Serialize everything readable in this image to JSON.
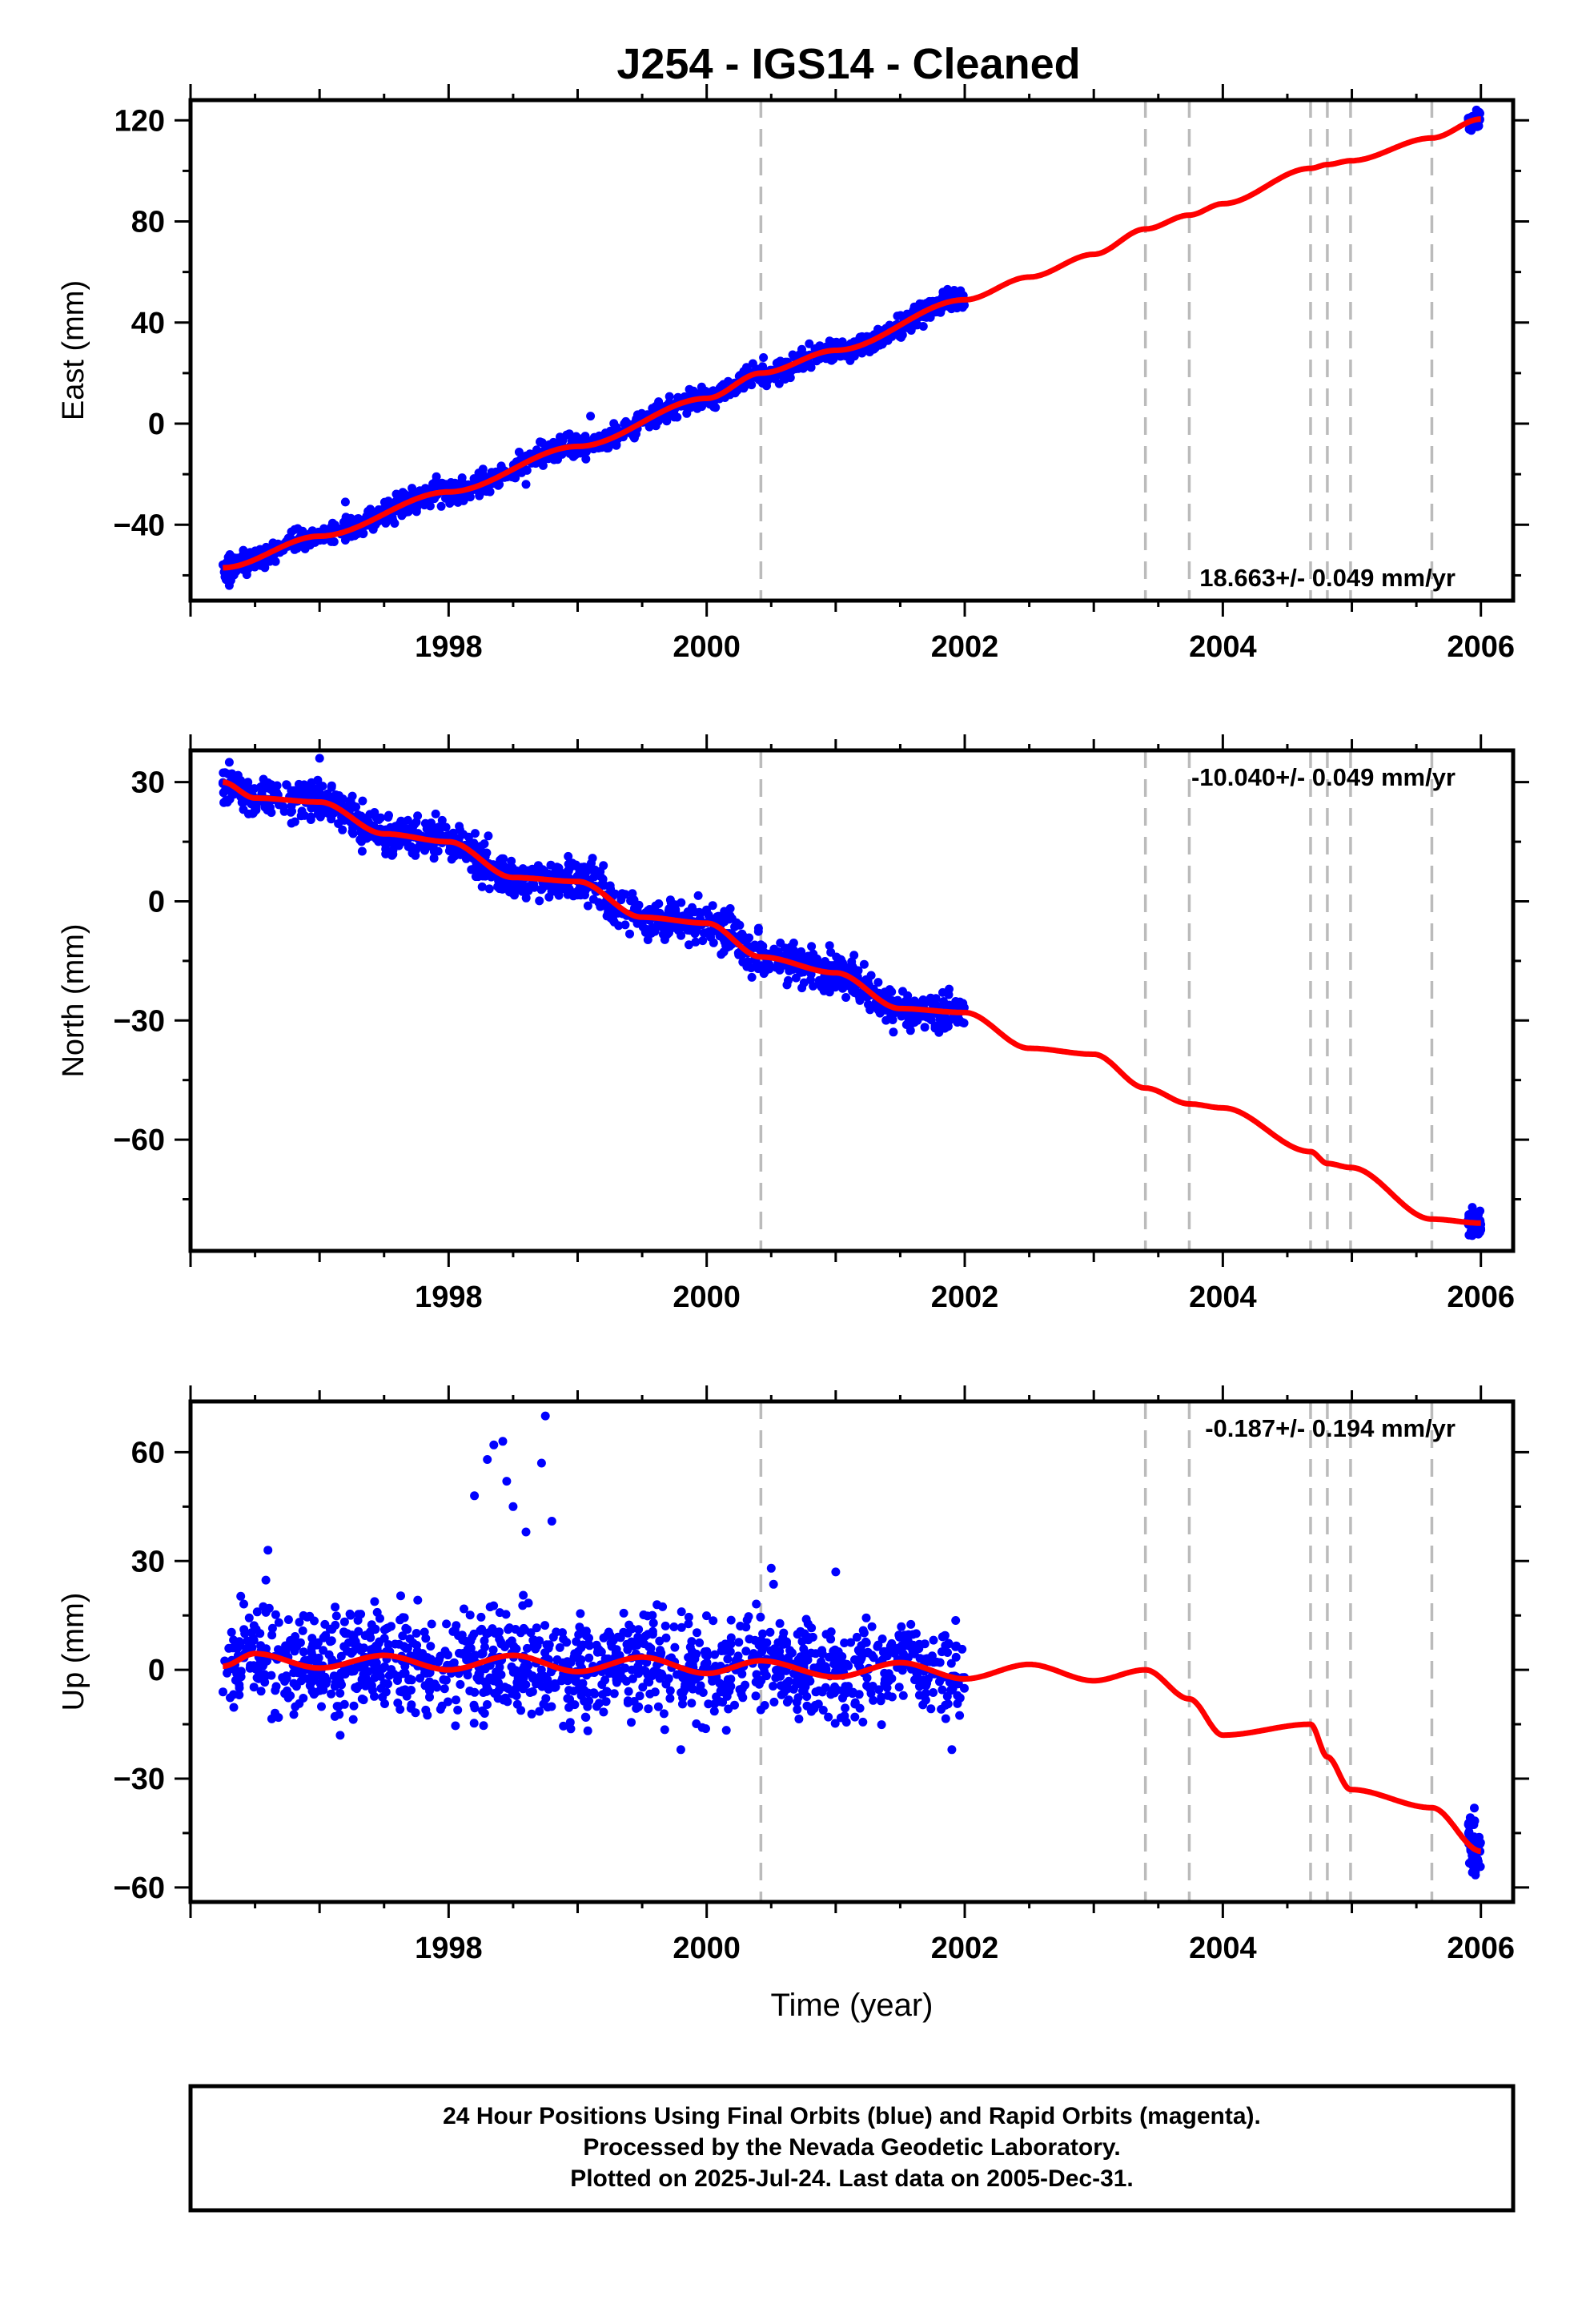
{
  "title": "J254  - IGS14 - Cleaned",
  "footer": {
    "lines": [
      "24 Hour Positions Using Final Orbits (blue) and Rapid Orbits (magenta).",
      "Processed by the Nevada Geodetic Laboratory.",
      "Plotted on 2025-Jul-24. Last data on 2005-Dec-31."
    ]
  },
  "colors": {
    "data_points": "#0000ff",
    "model_line": "#ff0000",
    "step_lines": "#bbbbbb",
    "frame": "#000000"
  },
  "chart_data": [
    {
      "type": "scatter",
      "name": "east",
      "ylabel": "East (mm)",
      "xlabel": "",
      "xlim": [
        1996.0,
        2006.25
      ],
      "ylim": [
        -70,
        128
      ],
      "x_ticks": [
        1998,
        2000,
        2002,
        2004,
        2006
      ],
      "x_tick_labels": [
        "1998",
        "2000",
        "2002",
        "2004",
        "2006"
      ],
      "y_ticks": [
        -40,
        0,
        40,
        80,
        120
      ],
      "y_tick_labels": [
        "−40",
        "0",
        "40",
        "80",
        "120"
      ],
      "rate_label": "18.663+/- 0.049 mm/yr",
      "rate_position": "bottom-right",
      "grid": false,
      "step_epochs": [
        2000.42,
        2003.4,
        2003.74,
        2004.68,
        2004.81,
        2004.99,
        2005.62
      ],
      "data_span": [
        1996.25,
        2002.0
      ],
      "data_tail": [
        2005.9,
        2006.0
      ],
      "model": [
        {
          "x": 1996.25,
          "y": -57.0
        },
        {
          "x": 1997.0,
          "y": -44.5
        },
        {
          "x": 1998.0,
          "y": -27.0
        },
        {
          "x": 1999.0,
          "y": -9.0
        },
        {
          "x": 2000.0,
          "y": 10.0
        },
        {
          "x": 2000.42,
          "y": 20.0
        },
        {
          "x": 2001.0,
          "y": 29.0
        },
        {
          "x": 2002.0,
          "y": 49.0
        },
        {
          "x": 2002.5,
          "y": 58.0
        },
        {
          "x": 2003.0,
          "y": 67.0
        },
        {
          "x": 2003.4,
          "y": 77.0
        },
        {
          "x": 2003.74,
          "y": 82.5
        },
        {
          "x": 2004.0,
          "y": 87.0
        },
        {
          "x": 2004.68,
          "y": 101.0
        },
        {
          "x": 2004.81,
          "y": 102.5
        },
        {
          "x": 2004.99,
          "y": 104.0
        },
        {
          "x": 2005.62,
          "y": 113.0
        },
        {
          "x": 2006.0,
          "y": 120.5
        }
      ],
      "noise_mm": 2.2,
      "outliers": [
        {
          "x": 1997.2,
          "y": -31
        },
        {
          "x": 1998.6,
          "y": -24
        },
        {
          "x": 1999.1,
          "y": 3
        },
        {
          "x": 1996.3,
          "y": -64
        },
        {
          "x": 2001.3,
          "y": 30
        }
      ]
    },
    {
      "type": "scatter",
      "name": "north",
      "ylabel": "North (mm)",
      "xlabel": "",
      "xlim": [
        1996.0,
        2006.25
      ],
      "ylim": [
        -88,
        38
      ],
      "x_ticks": [
        1998,
        2000,
        2002,
        2004,
        2006
      ],
      "x_tick_labels": [
        "1998",
        "2000",
        "2002",
        "2004",
        "2006"
      ],
      "y_ticks": [
        -60,
        -30,
        0,
        30
      ],
      "y_tick_labels": [
        "−60",
        "−30",
        "0",
        "30"
      ],
      "rate_label": "-10.040+/- 0.049 mm/yr",
      "rate_position": "top-right",
      "grid": false,
      "step_epochs": [
        2000.42,
        2003.4,
        2003.74,
        2004.68,
        2004.81,
        2004.99,
        2005.62
      ],
      "data_span": [
        1996.25,
        2002.0
      ],
      "data_tail": [
        2005.9,
        2006.0
      ],
      "model": [
        {
          "x": 1996.25,
          "y": 30.0
        },
        {
          "x": 1996.5,
          "y": 26.0
        },
        {
          "x": 1997.0,
          "y": 25.0
        },
        {
          "x": 1997.5,
          "y": 17.0
        },
        {
          "x": 1998.0,
          "y": 15.0
        },
        {
          "x": 1998.5,
          "y": 6.0
        },
        {
          "x": 1999.0,
          "y": 5.0
        },
        {
          "x": 1999.5,
          "y": -4.0
        },
        {
          "x": 2000.0,
          "y": -5.5
        },
        {
          "x": 2000.42,
          "y": -14.0
        },
        {
          "x": 2001.0,
          "y": -18.0
        },
        {
          "x": 2001.5,
          "y": -27.0
        },
        {
          "x": 2002.0,
          "y": -28.0
        },
        {
          "x": 2002.5,
          "y": -37.0
        },
        {
          "x": 2003.0,
          "y": -38.5
        },
        {
          "x": 2003.4,
          "y": -47.0
        },
        {
          "x": 2003.74,
          "y": -51.0
        },
        {
          "x": 2004.0,
          "y": -52.0
        },
        {
          "x": 2004.68,
          "y": -63.0
        },
        {
          "x": 2004.81,
          "y": -66.0
        },
        {
          "x": 2004.99,
          "y": -67.0
        },
        {
          "x": 2005.62,
          "y": -80.0
        },
        {
          "x": 2006.0,
          "y": -81.0
        }
      ],
      "noise_mm": 2.5,
      "outliers": [
        {
          "x": 1996.3,
          "y": 35
        },
        {
          "x": 1997.0,
          "y": 36
        },
        {
          "x": 1997.9,
          "y": 22
        },
        {
          "x": 1999.2,
          "y": 9
        },
        {
          "x": 2001.8,
          "y": -33
        }
      ]
    },
    {
      "type": "scatter",
      "name": "up",
      "ylabel": "Up (mm)",
      "xlabel": "Time (year)",
      "xlim": [
        1996.0,
        2006.25
      ],
      "ylim": [
        -64,
        74
      ],
      "x_ticks": [
        1998,
        2000,
        2002,
        2004,
        2006
      ],
      "x_tick_labels": [
        "1998",
        "2000",
        "2002",
        "2004",
        "2006"
      ],
      "y_ticks": [
        -60,
        -30,
        0,
        30,
        60
      ],
      "y_tick_labels": [
        "−60",
        "−30",
        "0",
        "30",
        "60"
      ],
      "rate_label": "-0.187+/- 0.194 mm/yr",
      "rate_position": "top-right",
      "grid": false,
      "step_epochs": [
        2000.42,
        2003.4,
        2003.74,
        2004.68,
        2004.81,
        2004.99,
        2005.62
      ],
      "data_span": [
        1996.25,
        2002.0
      ],
      "data_tail": [
        2005.9,
        2006.0
      ],
      "model": [
        {
          "x": 1996.25,
          "y": 1.0
        },
        {
          "x": 1996.5,
          "y": 4.5
        },
        {
          "x": 1997.0,
          "y": 0.5
        },
        {
          "x": 1997.5,
          "y": 4.0
        },
        {
          "x": 1998.0,
          "y": 0.0
        },
        {
          "x": 1998.5,
          "y": 4.0
        },
        {
          "x": 1999.0,
          "y": -0.5
        },
        {
          "x": 1999.5,
          "y": 3.5
        },
        {
          "x": 2000.0,
          "y": -1.0
        },
        {
          "x": 2000.42,
          "y": 2.5
        },
        {
          "x": 2001.0,
          "y": -2.0
        },
        {
          "x": 2001.5,
          "y": 2.0
        },
        {
          "x": 2002.0,
          "y": -2.5
        },
        {
          "x": 2002.5,
          "y": 1.5
        },
        {
          "x": 2003.0,
          "y": -3.0
        },
        {
          "x": 2003.4,
          "y": 0.0
        },
        {
          "x": 2003.74,
          "y": -8.0
        },
        {
          "x": 2004.0,
          "y": -18.0
        },
        {
          "x": 2004.68,
          "y": -15.0
        },
        {
          "x": 2004.81,
          "y": -24.0
        },
        {
          "x": 2004.99,
          "y": -33.0
        },
        {
          "x": 2005.62,
          "y": -38.0
        },
        {
          "x": 2006.0,
          "y": -50.0
        }
      ],
      "noise_mm": 7.0,
      "outliers": [
        {
          "x": 1998.35,
          "y": 62
        },
        {
          "x": 1998.42,
          "y": 63
        },
        {
          "x": 1998.3,
          "y": 58
        },
        {
          "x": 1998.75,
          "y": 70
        },
        {
          "x": 1998.72,
          "y": 57
        },
        {
          "x": 1998.2,
          "y": 48
        },
        {
          "x": 1998.5,
          "y": 45
        },
        {
          "x": 1998.6,
          "y": 38
        },
        {
          "x": 1998.45,
          "y": 52
        },
        {
          "x": 1998.8,
          "y": 41
        },
        {
          "x": 1996.6,
          "y": 33
        },
        {
          "x": 2000.5,
          "y": 28
        },
        {
          "x": 2001.0,
          "y": 27
        },
        {
          "x": 1999.8,
          "y": -22
        },
        {
          "x": 2001.9,
          "y": -22
        }
      ]
    }
  ]
}
